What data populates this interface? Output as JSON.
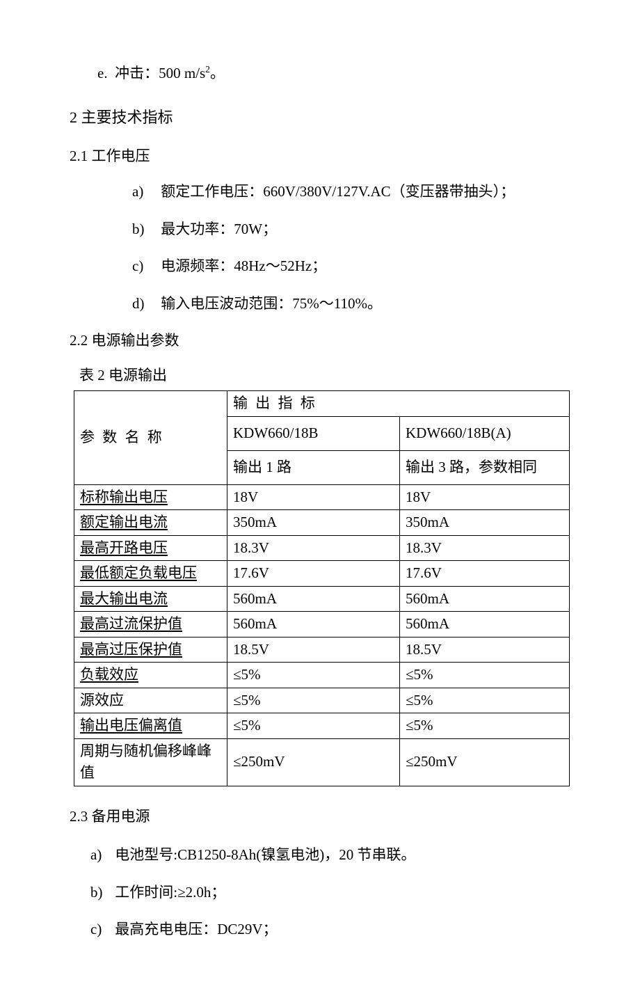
{
  "line_e": "e.  冲击：500 m/s²。",
  "sec2_title": "2 主要技术指标",
  "sec21_title": "2.1 工作电压",
  "sec21_items": [
    {
      "letter": "a)",
      "text": "额定工作电压：660V/380V/127V.AC（变压器带抽头）；"
    },
    {
      "letter": "b)",
      "text": "最大功率：70W；"
    },
    {
      "letter": "c)",
      "text": "电源频率：48Hz～52Hz；"
    },
    {
      "letter": "d)",
      "text": "输入电压波动范围：75%～110%。"
    }
  ],
  "sec22_title": "2.2 电源输出参数",
  "table_caption": "表 2  电源输出",
  "table": {
    "param_header": "参 数 名 称",
    "output_header": "输 出 指 标",
    "model_a": "KDW660/18B",
    "model_b": "KDW660/18B(A)",
    "out_a": "输出 1 路",
    "out_b": "输出 3 路，参数相同",
    "rows": [
      {
        "p": "标称输出电压",
        "a": "18V",
        "b": "18V",
        "u": true
      },
      {
        "p": "额定输出电流",
        "a": "350mA",
        "b": "350mA",
        "u": true
      },
      {
        "p": "最高开路电压",
        "a": " 18.3V",
        "b": " 18.3V",
        "u": true
      },
      {
        "p": "最低额定负载电压",
        "a": " 17.6V",
        "b": " 17.6V",
        "u": true
      },
      {
        "p": "最大输出电流",
        "a": " 560mA",
        "b": " 560mA",
        "u": true
      },
      {
        "p": "最高过流保护值",
        "a": " 560mA",
        "b": " 560mA",
        "u": true
      },
      {
        "p": "最高过压保护值",
        "a": " 18.5V",
        "b": " 18.5V",
        "u": true
      },
      {
        "p": "负载效应",
        "a": "≤5%",
        "b": "≤5%",
        "u": true
      },
      {
        "p": "源效应",
        "a": "≤5%",
        "b": "≤5%",
        "u": false
      },
      {
        "p": "输出电压偏离值",
        "a": "≤5%",
        "b": "≤5%",
        "u": true
      },
      {
        "p": "周期与随机偏移峰峰值",
        "a": "≤250mV",
        "b": "≤250mV",
        "u": false
      }
    ]
  },
  "sec23_title": "2.3   备用电源",
  "sec23_items": [
    {
      "letter": "a)",
      "text": "电池型号:CB1250-8Ah(镍氢电池)，20 节串联。"
    },
    {
      "letter": "b)",
      "text": "工作时间:≥2.0h；"
    },
    {
      "letter": "c)",
      "text": "最高充电电压：DC29V；"
    }
  ]
}
